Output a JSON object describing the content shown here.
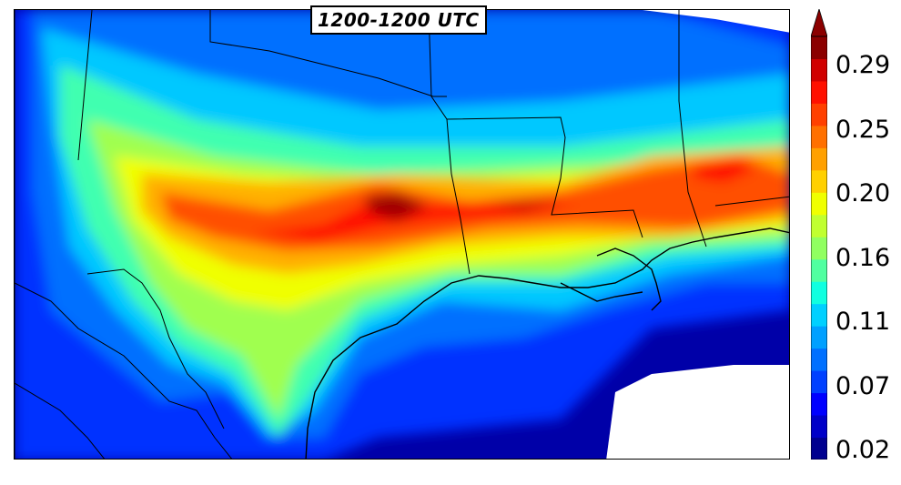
{
  "title": "1200-1200 UTC",
  "colorbar": {
    "tick_labels": [
      "0.29",
      "0.25",
      "0.20",
      "0.16",
      "0.11",
      "0.07",
      "0.02"
    ],
    "colors": [
      "#00008f",
      "#0000c8",
      "#0000ff",
      "#0040ff",
      "#0070ff",
      "#00a0ff",
      "#00d0ff",
      "#10ffe0",
      "#50ffa0",
      "#90ff60",
      "#c0ff30",
      "#f0ff00",
      "#ffd000",
      "#ffa000",
      "#ff7000",
      "#ff4000",
      "#ff1000",
      "#d00000",
      "#8b0000"
    ]
  }
}
